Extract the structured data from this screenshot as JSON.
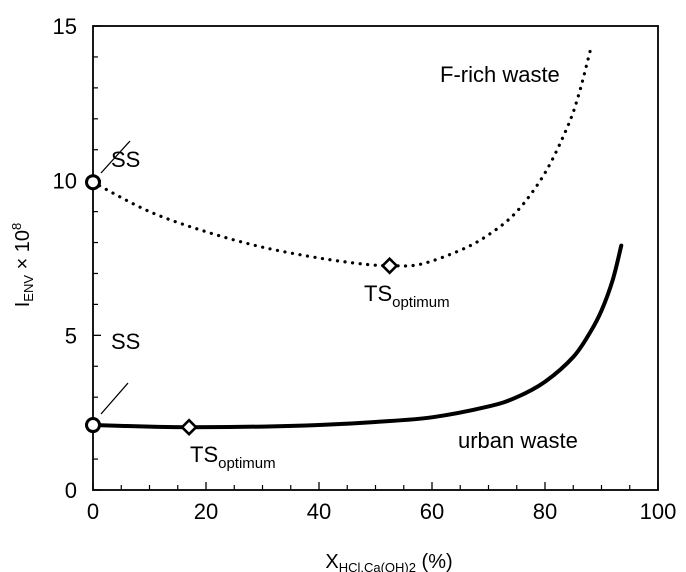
{
  "chart_data": {
    "type": "line",
    "xlabel": {
      "main": "X",
      "sub": "HCl,Ca(OH)2",
      "unit": " (%)"
    },
    "ylabel": {
      "main": "I",
      "sub": "ENV",
      "times": " × 10",
      "sup": "8"
    },
    "xlim": [
      0,
      100
    ],
    "ylim": [
      0,
      15
    ],
    "xticks": [
      0,
      20,
      40,
      60,
      80,
      100
    ],
    "yticks": [
      0,
      5,
      10,
      15
    ],
    "grid": false,
    "series": [
      {
        "name": "F-rich waste",
        "style": "dotted",
        "x": [
          0,
          10,
          20,
          30,
          40,
          48,
          53,
          58,
          65,
          70,
          75,
          80,
          84,
          86,
          88
        ],
        "y": [
          9.95,
          9.0,
          8.35,
          7.85,
          7.5,
          7.3,
          7.25,
          7.3,
          7.75,
          8.25,
          9.0,
          10.25,
          11.75,
          12.8,
          14.2
        ]
      },
      {
        "name": "urban waste",
        "style": "solid",
        "x": [
          0,
          10,
          17,
          30,
          40,
          50,
          60,
          70,
          75,
          80,
          85,
          88,
          90,
          92,
          93.5
        ],
        "y": [
          2.1,
          2.05,
          2.03,
          2.05,
          2.1,
          2.2,
          2.35,
          2.7,
          3.0,
          3.5,
          4.3,
          5.1,
          5.8,
          6.8,
          7.9
        ]
      }
    ],
    "markers": [
      {
        "name": "SS",
        "shape": "circle",
        "series": "F-rich waste",
        "x": 0,
        "y": 9.95
      },
      {
        "name": "TS_optimum",
        "shape": "diamond",
        "series": "F-rich waste",
        "x": 52.5,
        "y": 7.25
      },
      {
        "name": "SS",
        "shape": "circle",
        "series": "urban waste",
        "x": 0,
        "y": 2.1
      },
      {
        "name": "TS_optimum",
        "shape": "diamond",
        "series": "urban waste",
        "x": 17,
        "y": 2.03
      }
    ],
    "annotations": {
      "frich_series_label": "F-rich waste",
      "urban_series_label": "urban waste",
      "ss_upper": "SS",
      "ss_lower": "SS",
      "ts_upper_main": "TS",
      "ts_upper_sub": "optimum",
      "ts_lower_main": "TS",
      "ts_lower_sub": "optimum"
    }
  }
}
